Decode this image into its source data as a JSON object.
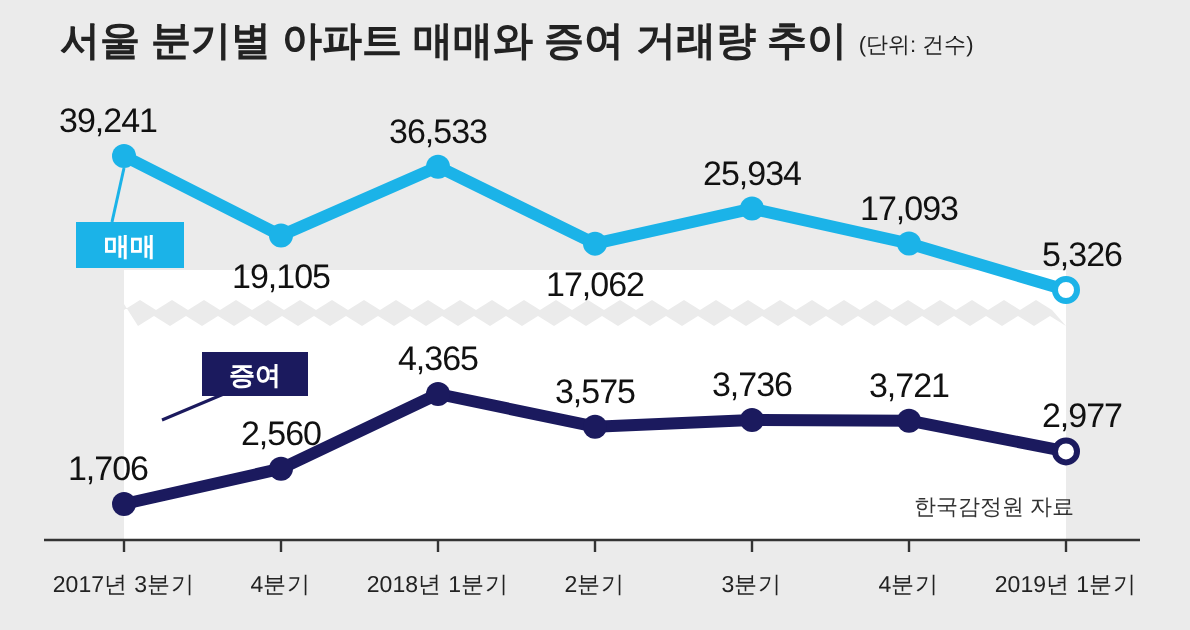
{
  "chart_data": [
    {
      "type": "line",
      "title": "서울 분기별 아파트 매매와 증여 거래량 추이",
      "subtitle": "(단위: 건수)",
      "series": [
        {
          "name": "매매",
          "color": "#1bb3e8",
          "values": [
            39241,
            19105,
            36533,
            17062,
            25934,
            17093,
            5326
          ],
          "value_labels": [
            "39,241",
            "19,105",
            "36,533",
            "17,062",
            "25,934",
            "17,093",
            "5,326"
          ]
        }
      ],
      "marker": "circle"
    },
    {
      "type": "line",
      "categories": [
        "2017년 3분기",
        "4분기",
        "2018년 1분기",
        "2분기",
        "3분기",
        "4분기",
        "2019년 1분기"
      ],
      "series": [
        {
          "name": "증여",
          "color": "#1b1a5e",
          "values": [
            1706,
            2560,
            4365,
            3575,
            3736,
            3721,
            2977
          ],
          "value_labels": [
            "1,706",
            "2,560",
            "4,365",
            "3,575",
            "3,736",
            "3,721",
            "2,977"
          ]
        }
      ],
      "marker": "circle",
      "tick_labels": "x",
      "annotations": [
        "한국감정원 자료"
      ]
    }
  ]
}
